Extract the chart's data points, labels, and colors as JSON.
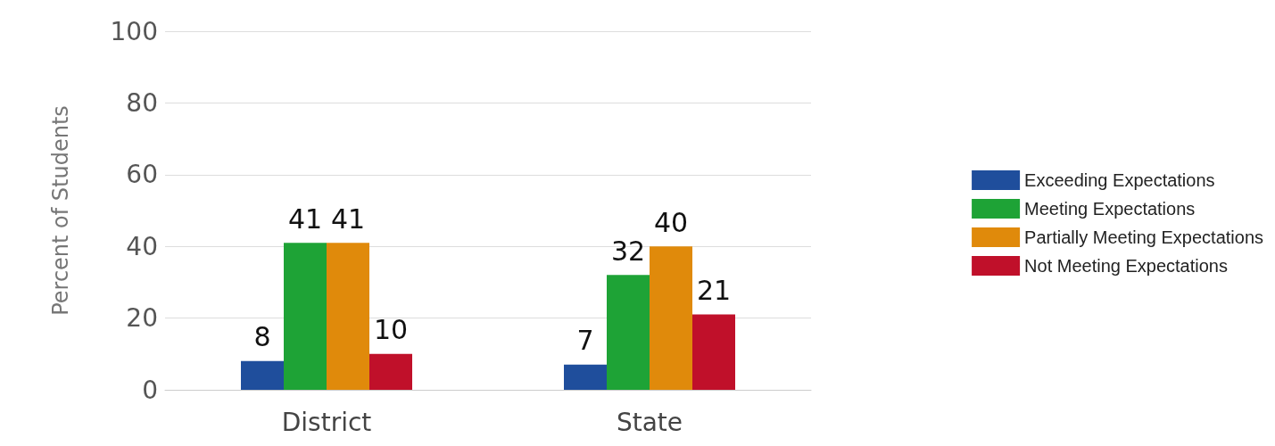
{
  "chart_data": {
    "type": "bar",
    "ylabel": "Percent of Students",
    "categories": [
      "District",
      "State"
    ],
    "series": [
      {
        "name": "Exceeding Expectations",
        "color": "#1f4e9c",
        "values": [
          8,
          7
        ]
      },
      {
        "name": "Meeting Expectations",
        "color": "#1ea336",
        "values": [
          41,
          32
        ]
      },
      {
        "name": "Partially Meeting Expectations",
        "color": "#e08a0b",
        "values": [
          41,
          40
        ]
      },
      {
        "name": "Not Meeting Expectations",
        "color": "#c0102a",
        "values": [
          10,
          21
        ]
      }
    ],
    "ylim": [
      0,
      100
    ],
    "yticks": [
      0,
      20,
      40,
      60,
      80,
      100
    ],
    "grid": "y",
    "legend": "right",
    "data_labels": true
  }
}
